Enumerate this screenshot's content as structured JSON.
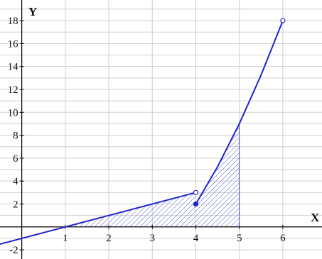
{
  "chart_data": {
    "type": "line",
    "title": "",
    "xlabel": "X",
    "ylabel": "Y",
    "xlim": [
      -0.5,
      6.9
    ],
    "ylim": [
      -2.8,
      19.8
    ],
    "grid": true,
    "x_ticks": [
      1,
      2,
      3,
      4,
      5,
      6
    ],
    "x_tick_labels": [
      "1",
      "2",
      "3",
      "4",
      "5",
      "6"
    ],
    "y_ticks": [
      -2,
      2,
      4,
      6,
      8,
      10,
      12,
      14,
      16,
      18
    ],
    "y_tick_labels": [
      "-2",
      "2",
      "4",
      "6",
      "8",
      "10",
      "12",
      "14",
      "16",
      "18"
    ],
    "series": [
      {
        "segment": "linear",
        "points": [
          [
            -0.5,
            -1.5
          ],
          [
            4,
            3
          ]
        ],
        "end_marker": "open",
        "color": "#2222cc"
      },
      {
        "segment": "curve",
        "points": [
          [
            4,
            2
          ],
          [
            4.5,
            5.25
          ],
          [
            5,
            9
          ],
          [
            5.5,
            13.25
          ],
          [
            6,
            18
          ]
        ],
        "start_marker": "filled",
        "end_marker": "open",
        "color": "#2222cc"
      }
    ],
    "shaded_region": {
      "x_from": 1,
      "x_to": 5,
      "pattern": "hatched",
      "color": "#2222cc"
    }
  }
}
